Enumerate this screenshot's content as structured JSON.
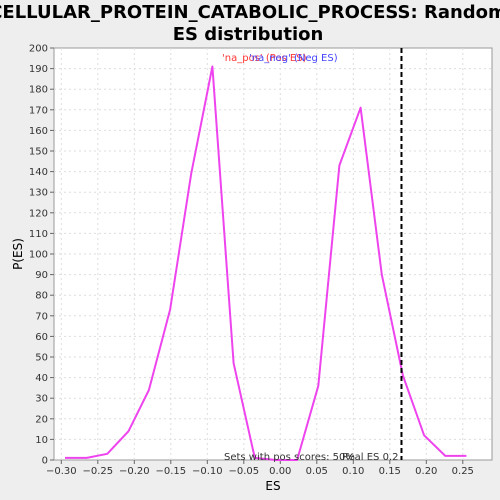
{
  "chart_data": {
    "type": "line",
    "title_lines": [
      "CELLULAR_PROTEIN_CATABOLIC_PROCESS: Random",
      "ES distribution"
    ],
    "xlabel": "ES",
    "ylabel": "P(ES)",
    "xlim": [
      -0.31,
      0.29
    ],
    "ylim": [
      0,
      200
    ],
    "xticks": [
      -0.3,
      -0.25,
      -0.2,
      -0.15,
      -0.1,
      -0.05,
      0.0,
      0.05,
      0.1,
      0.15,
      0.2,
      0.25
    ],
    "xtick_labels": [
      "−0.30",
      "−0.25",
      "−0.20",
      "−0.15",
      "−0.10",
      "−0.05",
      "0.00",
      "0.05",
      "0.10",
      "0.15",
      "0.20",
      "0.25"
    ],
    "yticks": [
      0,
      10,
      20,
      30,
      40,
      50,
      60,
      70,
      80,
      90,
      100,
      110,
      120,
      130,
      140,
      150,
      160,
      170,
      180,
      190,
      200
    ],
    "grid": true,
    "legend": {
      "placement": "top",
      "entries": [
        {
          "label": "'na_pos' (Pos ES)",
          "color": "#ff3333"
        },
        {
          "label": "'na_neg' (Neg ES)",
          "color": "#4444ff"
        }
      ]
    },
    "series": [
      {
        "color": "#ee44ee",
        "x": [
          -0.295,
          -0.265,
          -0.237,
          -0.208,
          -0.18,
          -0.151,
          -0.122,
          -0.093,
          -0.064,
          -0.035,
          -0.006,
          0.023,
          0.052,
          0.081,
          0.11,
          0.139,
          0.168,
          0.197,
          0.226,
          0.255
        ],
        "y": [
          1,
          1,
          3,
          14,
          34,
          73,
          139,
          191,
          47,
          1,
          0,
          0,
          36,
          143,
          171,
          90,
          41,
          12,
          2,
          2
        ]
      }
    ],
    "real_es": {
      "x": 0.166,
      "color": "#000000",
      "label": "Real ES 0.2"
    },
    "annotation": "Sets with pos scores: 50%"
  }
}
